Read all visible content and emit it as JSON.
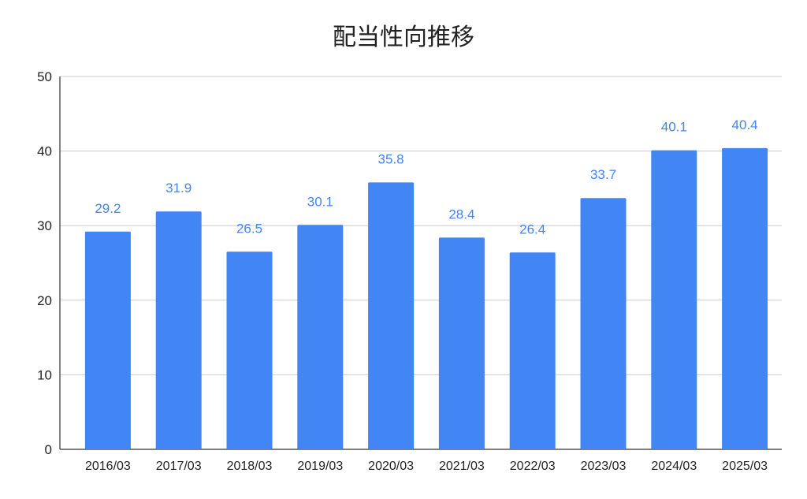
{
  "chart_data": {
    "type": "bar",
    "title": "配当性向推移",
    "xlabel": "",
    "ylabel": "",
    "categories": [
      "2016/03",
      "2017/03",
      "2018/03",
      "2019/03",
      "2020/03",
      "2021/03",
      "2022/03",
      "2023/03",
      "2024/03",
      "2025/03"
    ],
    "values": [
      29.2,
      31.9,
      26.5,
      30.1,
      35.8,
      28.4,
      26.4,
      33.7,
      40.1,
      40.4
    ],
    "data_labels": [
      "29.2",
      "31.9",
      "26.5",
      "30.1",
      "35.8",
      "28.4",
      "26.4",
      "33.7",
      "40.1",
      "40.4"
    ],
    "ylim": [
      0,
      50
    ],
    "yticks": [
      "0",
      "10",
      "20",
      "30",
      "40",
      "50"
    ],
    "grid": true,
    "legend": "none",
    "colors": {
      "bar": "#4285F4",
      "data_label": "#4285F4",
      "grid": "#cccccc",
      "axis": "#333333",
      "text": "#222222"
    }
  }
}
